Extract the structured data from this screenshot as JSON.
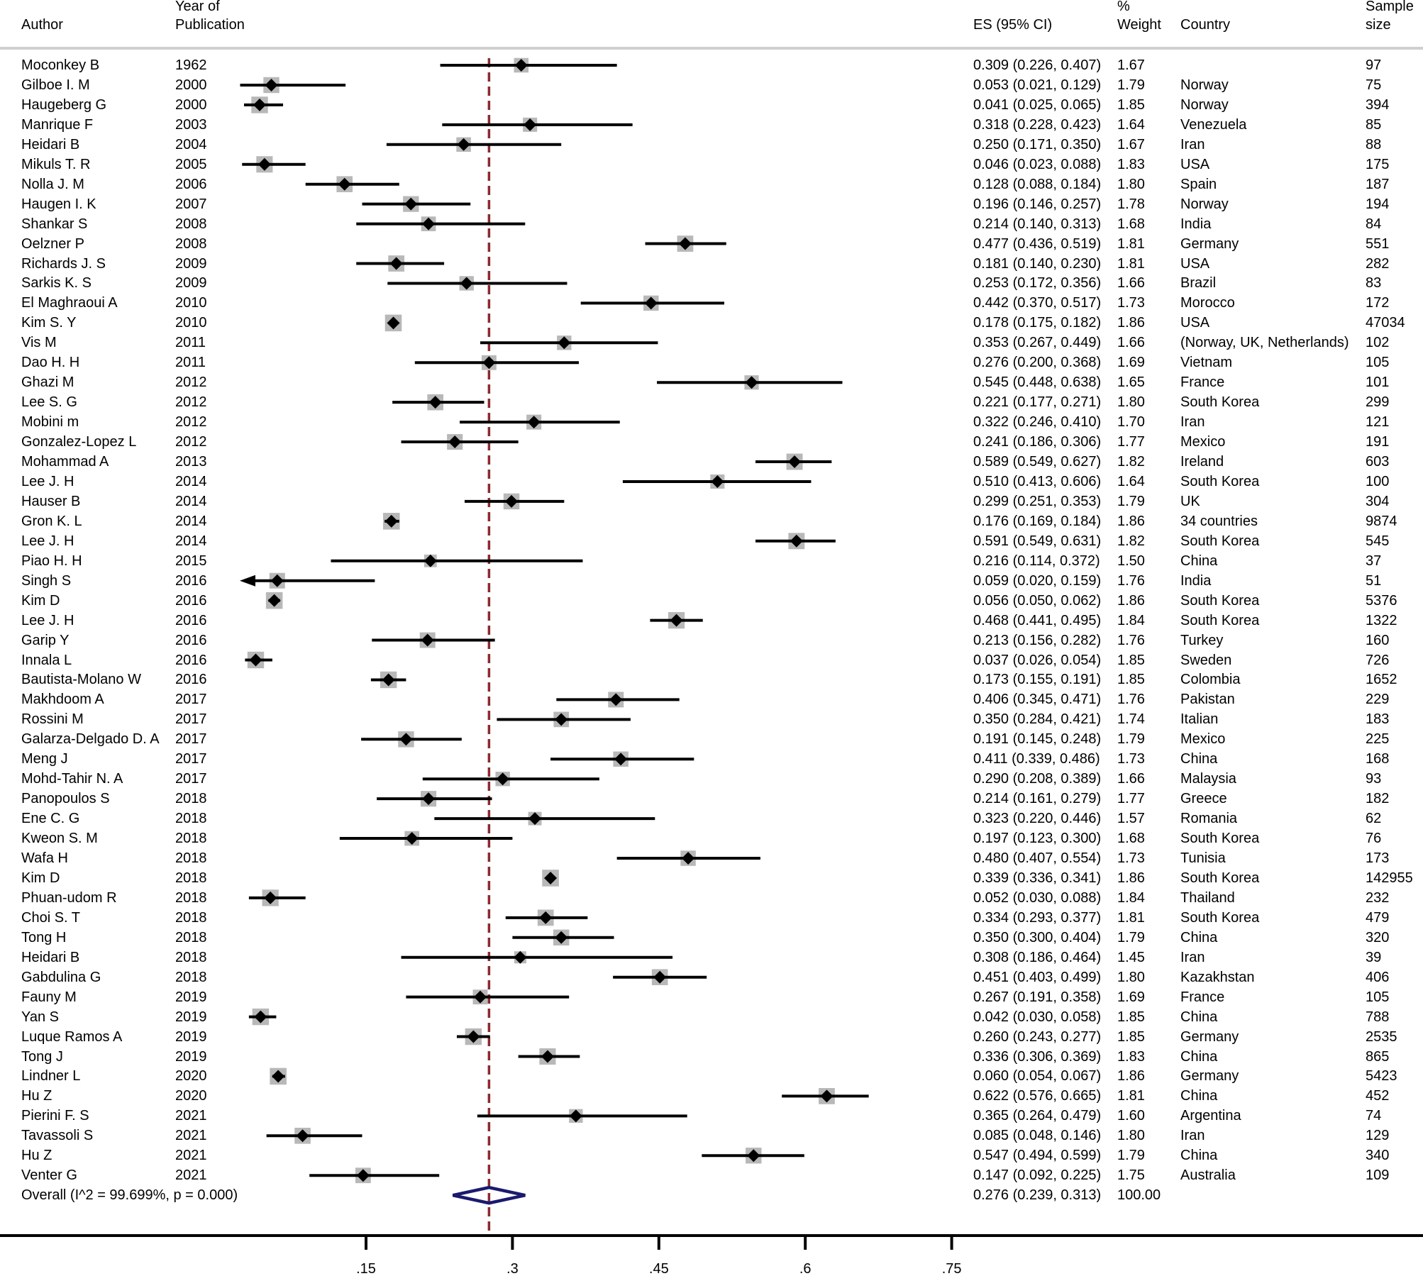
{
  "headers": {
    "author": "Author",
    "year": "Year of\nPublication",
    "es": "ES (95% CI)",
    "weight": "%\nWeight",
    "country": "Country",
    "sample": "Sample\nsize"
  },
  "colors": {
    "box": "#b8b8b8",
    "marker": "#000000",
    "ref_line": "#8b2a2f",
    "overall": "#1a1a6e",
    "separator": "#cfcfcf"
  },
  "chart_data": {
    "type": "forest",
    "xlabel": "",
    "x_ticks": [
      ".15",
      ".3",
      ".45",
      ".6",
      ".75"
    ],
    "x_tick_values": [
      0.15,
      0.3,
      0.45,
      0.6,
      0.75
    ],
    "reference_line": 0.276,
    "studies": [
      {
        "author": "Moconkey B",
        "year": "1962",
        "es": 0.309,
        "lo": 0.226,
        "hi": 0.407,
        "es_text": "0.309 (0.226, 0.407)",
        "weight": "1.67",
        "country": "",
        "sample": "97"
      },
      {
        "author": "Gilboe I. M",
        "year": "2000",
        "es": 0.053,
        "lo": 0.021,
        "hi": 0.129,
        "es_text": "0.053 (0.021, 0.129)",
        "weight": "1.79",
        "country": "Norway",
        "sample": "75"
      },
      {
        "author": "Haugeberg G",
        "year": "2000",
        "es": 0.041,
        "lo": 0.025,
        "hi": 0.065,
        "es_text": "0.041 (0.025, 0.065)",
        "weight": "1.85",
        "country": "Norway",
        "sample": "394"
      },
      {
        "author": "Manrique F",
        "year": "2003",
        "es": 0.318,
        "lo": 0.228,
        "hi": 0.423,
        "es_text": "0.318 (0.228, 0.423)",
        "weight": "1.64",
        "country": "Venezuela",
        "sample": "85"
      },
      {
        "author": "Heidari B",
        "year": "2004",
        "es": 0.25,
        "lo": 0.171,
        "hi": 0.35,
        "es_text": "0.250 (0.171, 0.350)",
        "weight": "1.67",
        "country": "Iran",
        "sample": "88"
      },
      {
        "author": "Mikuls T. R",
        "year": "2005",
        "es": 0.046,
        "lo": 0.023,
        "hi": 0.088,
        "es_text": "0.046 (0.023, 0.088)",
        "weight": "1.83",
        "country": "USA",
        "sample": "175"
      },
      {
        "author": "Nolla J. M",
        "year": "2006",
        "es": 0.128,
        "lo": 0.088,
        "hi": 0.184,
        "es_text": "0.128 (0.088, 0.184)",
        "weight": "1.80",
        "country": "Spain",
        "sample": "187"
      },
      {
        "author": "Haugen I. K",
        "year": "2007",
        "es": 0.196,
        "lo": 0.146,
        "hi": 0.257,
        "es_text": "0.196 (0.146, 0.257)",
        "weight": "1.78",
        "country": "Norway",
        "sample": "194"
      },
      {
        "author": "Shankar S",
        "year": "2008",
        "es": 0.214,
        "lo": 0.14,
        "hi": 0.313,
        "es_text": "0.214 (0.140, 0.313)",
        "weight": "1.68",
        "country": "India",
        "sample": "84"
      },
      {
        "author": "Oelzner P",
        "year": "2008",
        "es": 0.477,
        "lo": 0.436,
        "hi": 0.519,
        "es_text": "0.477 (0.436, 0.519)",
        "weight": "1.81",
        "country": "Germany",
        "sample": "551"
      },
      {
        "author": "Richards J. S",
        "year": "2009",
        "es": 0.181,
        "lo": 0.14,
        "hi": 0.23,
        "es_text": "0.181 (0.140, 0.230)",
        "weight": "1.81",
        "country": "USA",
        "sample": "282"
      },
      {
        "author": "Sarkis K. S",
        "year": "2009",
        "es": 0.253,
        "lo": 0.172,
        "hi": 0.356,
        "es_text": "0.253 (0.172, 0.356)",
        "weight": "1.66",
        "country": "Brazil",
        "sample": "83"
      },
      {
        "author": "El Maghraoui A",
        "year": "2010",
        "es": 0.442,
        "lo": 0.37,
        "hi": 0.517,
        "es_text": "0.442 (0.370, 0.517)",
        "weight": "1.73",
        "country": "Morocco",
        "sample": "172"
      },
      {
        "author": "Kim S. Y",
        "year": "2010",
        "es": 0.178,
        "lo": 0.175,
        "hi": 0.182,
        "es_text": "0.178 (0.175, 0.182)",
        "weight": "1.86",
        "country": "USA",
        "sample": "47034"
      },
      {
        "author": "Vis M",
        "year": "2011",
        "es": 0.353,
        "lo": 0.267,
        "hi": 0.449,
        "es_text": "0.353 (0.267, 0.449)",
        "weight": "1.66",
        "country": "(Norway, UK, Netherlands)",
        "sample": "102"
      },
      {
        "author": "Dao H. H",
        "year": "2011",
        "es": 0.276,
        "lo": 0.2,
        "hi": 0.368,
        "es_text": "0.276 (0.200, 0.368)",
        "weight": "1.69",
        "country": "Vietnam",
        "sample": "105"
      },
      {
        "author": "Ghazi M",
        "year": "2012",
        "es": 0.545,
        "lo": 0.448,
        "hi": 0.638,
        "es_text": "0.545 (0.448, 0.638)",
        "weight": "1.65",
        "country": "France",
        "sample": "101"
      },
      {
        "author": "Lee S. G",
        "year": "2012",
        "es": 0.221,
        "lo": 0.177,
        "hi": 0.271,
        "es_text": "0.221 (0.177, 0.271)",
        "weight": "1.80",
        "country": "South Korea",
        "sample": "299"
      },
      {
        "author": "Mobini m",
        "year": "2012",
        "es": 0.322,
        "lo": 0.246,
        "hi": 0.41,
        "es_text": "0.322 (0.246, 0.410)",
        "weight": "1.70",
        "country": "Iran",
        "sample": "121"
      },
      {
        "author": "Gonzalez-Lopez L",
        "year": "2012",
        "es": 0.241,
        "lo": 0.186,
        "hi": 0.306,
        "es_text": "0.241 (0.186, 0.306)",
        "weight": "1.77",
        "country": "Mexico",
        "sample": "191"
      },
      {
        "author": "Mohammad A",
        "year": "2013",
        "es": 0.589,
        "lo": 0.549,
        "hi": 0.627,
        "es_text": "0.589 (0.549, 0.627)",
        "weight": "1.82",
        "country": "Ireland",
        "sample": "603"
      },
      {
        "author": "Lee J. H",
        "year": "2014",
        "es": 0.51,
        "lo": 0.413,
        "hi": 0.606,
        "es_text": "0.510 (0.413, 0.606)",
        "weight": "1.64",
        "country": "South Korea",
        "sample": "100"
      },
      {
        "author": "Hauser B",
        "year": "2014",
        "es": 0.299,
        "lo": 0.251,
        "hi": 0.353,
        "es_text": "0.299 (0.251, 0.353)",
        "weight": "1.79",
        "country": "UK",
        "sample": "304"
      },
      {
        "author": "Gron K. L",
        "year": "2014",
        "es": 0.176,
        "lo": 0.169,
        "hi": 0.184,
        "es_text": "0.176 (0.169, 0.184)",
        "weight": "1.86",
        "country": "34 countries",
        "sample": "9874"
      },
      {
        "author": "Lee J. H",
        "year": "2014",
        "es": 0.591,
        "lo": 0.549,
        "hi": 0.631,
        "es_text": "0.591 (0.549, 0.631)",
        "weight": "1.82",
        "country": "South Korea",
        "sample": "545"
      },
      {
        "author": "Piao H. H",
        "year": "2015",
        "es": 0.216,
        "lo": 0.114,
        "hi": 0.372,
        "es_text": "0.216 (0.114, 0.372)",
        "weight": "1.50",
        "country": "China",
        "sample": "37"
      },
      {
        "author": "Singh S",
        "year": "2016",
        "es": 0.059,
        "lo": 0.02,
        "hi": 0.159,
        "es_text": "0.059 (0.020, 0.159)",
        "weight": "1.76",
        "country": "India",
        "sample": "51"
      },
      {
        "author": "Kim D",
        "year": "2016",
        "es": 0.056,
        "lo": 0.05,
        "hi": 0.062,
        "es_text": "0.056 (0.050, 0.062)",
        "weight": "1.86",
        "country": "South Korea",
        "sample": "5376"
      },
      {
        "author": "Lee J. H",
        "year": "2016",
        "es": 0.468,
        "lo": 0.441,
        "hi": 0.495,
        "es_text": "0.468 (0.441, 0.495)",
        "weight": "1.84",
        "country": "South Korea",
        "sample": "1322"
      },
      {
        "author": "Garip Y",
        "year": "2016",
        "es": 0.213,
        "lo": 0.156,
        "hi": 0.282,
        "es_text": "0.213 (0.156, 0.282)",
        "weight": "1.76",
        "country": "Turkey",
        "sample": "160"
      },
      {
        "author": "Innala L",
        "year": "2016",
        "es": 0.037,
        "lo": 0.026,
        "hi": 0.054,
        "es_text": "0.037 (0.026, 0.054)",
        "weight": "1.85",
        "country": "Sweden",
        "sample": "726"
      },
      {
        "author": "Bautista-Molano W",
        "year": "2016",
        "es": 0.173,
        "lo": 0.155,
        "hi": 0.191,
        "es_text": "0.173 (0.155, 0.191)",
        "weight": "1.85",
        "country": "Colombia",
        "sample": "1652"
      },
      {
        "author": "Makhdoom A",
        "year": "2017",
        "es": 0.406,
        "lo": 0.345,
        "hi": 0.471,
        "es_text": "0.406 (0.345, 0.471)",
        "weight": "1.76",
        "country": "Pakistan",
        "sample": "229"
      },
      {
        "author": "Rossini M",
        "year": "2017",
        "es": 0.35,
        "lo": 0.284,
        "hi": 0.421,
        "es_text": "0.350 (0.284, 0.421)",
        "weight": "1.74",
        "country": "Italian",
        "sample": "183"
      },
      {
        "author": "Galarza-Delgado D. A",
        "year": "2017",
        "es": 0.191,
        "lo": 0.145,
        "hi": 0.248,
        "es_text": "0.191 (0.145, 0.248)",
        "weight": "1.79",
        "country": "Mexico",
        "sample": "225"
      },
      {
        "author": "Meng J",
        "year": "2017",
        "es": 0.411,
        "lo": 0.339,
        "hi": 0.486,
        "es_text": "0.411 (0.339, 0.486)",
        "weight": "1.73",
        "country": "China",
        "sample": "168"
      },
      {
        "author": "Mohd-Tahir N. A",
        "year": "2017",
        "es": 0.29,
        "lo": 0.208,
        "hi": 0.389,
        "es_text": "0.290 (0.208, 0.389)",
        "weight": "1.66",
        "country": "Malaysia",
        "sample": "93"
      },
      {
        "author": "Panopoulos S",
        "year": "2018",
        "es": 0.214,
        "lo": 0.161,
        "hi": 0.279,
        "es_text": "0.214 (0.161, 0.279)",
        "weight": "1.77",
        "country": "Greece",
        "sample": "182"
      },
      {
        "author": "Ene C. G",
        "year": "2018",
        "es": 0.323,
        "lo": 0.22,
        "hi": 0.446,
        "es_text": "0.323 (0.220, 0.446)",
        "weight": "1.57",
        "country": "Romania",
        "sample": "62"
      },
      {
        "author": "Kweon S. M",
        "year": "2018",
        "es": 0.197,
        "lo": 0.123,
        "hi": 0.3,
        "es_text": "0.197 (0.123, 0.300)",
        "weight": "1.68",
        "country": "South Korea",
        "sample": "76"
      },
      {
        "author": "Wafa H",
        "year": "2018",
        "es": 0.48,
        "lo": 0.407,
        "hi": 0.554,
        "es_text": "0.480 (0.407, 0.554)",
        "weight": "1.73",
        "country": "Tunisia",
        "sample": "173"
      },
      {
        "author": "Kim D",
        "year": "2018",
        "es": 0.339,
        "lo": 0.336,
        "hi": 0.341,
        "es_text": "0.339 (0.336, 0.341)",
        "weight": "1.86",
        "country": "South Korea",
        "sample": "142955"
      },
      {
        "author": "Phuan-udom R",
        "year": "2018",
        "es": 0.052,
        "lo": 0.03,
        "hi": 0.088,
        "es_text": "0.052 (0.030, 0.088)",
        "weight": "1.84",
        "country": "Thailand",
        "sample": "232"
      },
      {
        "author": "Choi S. T",
        "year": "2018",
        "es": 0.334,
        "lo": 0.293,
        "hi": 0.377,
        "es_text": "0.334 (0.293, 0.377)",
        "weight": "1.81",
        "country": "South Korea",
        "sample": "479"
      },
      {
        "author": "Tong H",
        "year": "2018",
        "es": 0.35,
        "lo": 0.3,
        "hi": 0.404,
        "es_text": "0.350 (0.300, 0.404)",
        "weight": "1.79",
        "country": "China",
        "sample": "320"
      },
      {
        "author": "Heidari B",
        "year": "2018",
        "es": 0.308,
        "lo": 0.186,
        "hi": 0.464,
        "es_text": "0.308 (0.186, 0.464)",
        "weight": "1.45",
        "country": "Iran",
        "sample": "39"
      },
      {
        "author": "Gabdulina G",
        "year": "2018",
        "es": 0.451,
        "lo": 0.403,
        "hi": 0.499,
        "es_text": "0.451 (0.403, 0.499)",
        "weight": "1.80",
        "country": "Kazakhstan",
        "sample": "406"
      },
      {
        "author": "Fauny M",
        "year": "2019",
        "es": 0.267,
        "lo": 0.191,
        "hi": 0.358,
        "es_text": "0.267 (0.191, 0.358)",
        "weight": "1.69",
        "country": "France",
        "sample": "105"
      },
      {
        "author": "Yan S",
        "year": "2019",
        "es": 0.042,
        "lo": 0.03,
        "hi": 0.058,
        "es_text": "0.042 (0.030, 0.058)",
        "weight": "1.85",
        "country": "China",
        "sample": "788"
      },
      {
        "author": "Luque Ramos A",
        "year": "2019",
        "es": 0.26,
        "lo": 0.243,
        "hi": 0.277,
        "es_text": "0.260 (0.243, 0.277)",
        "weight": "1.85",
        "country": "Germany",
        "sample": "2535"
      },
      {
        "author": "Tong J",
        "year": "2019",
        "es": 0.336,
        "lo": 0.306,
        "hi": 0.369,
        "es_text": "0.336 (0.306, 0.369)",
        "weight": "1.83",
        "country": "China",
        "sample": "865"
      },
      {
        "author": "Lindner L",
        "year": "2020",
        "es": 0.06,
        "lo": 0.054,
        "hi": 0.067,
        "es_text": "0.060 (0.054, 0.067)",
        "weight": "1.86",
        "country": "Germany",
        "sample": "5423"
      },
      {
        "author": "Hu Z",
        "year": "2020",
        "es": 0.622,
        "lo": 0.576,
        "hi": 0.665,
        "es_text": "0.622 (0.576, 0.665)",
        "weight": "1.81",
        "country": "China",
        "sample": "452"
      },
      {
        "author": "Pierini F. S",
        "year": "2021",
        "es": 0.365,
        "lo": 0.264,
        "hi": 0.479,
        "es_text": "0.365 (0.264, 0.479)",
        "weight": "1.60",
        "country": "Argentina",
        "sample": "74"
      },
      {
        "author": "Tavassoli S",
        "year": "2021",
        "es": 0.085,
        "lo": 0.048,
        "hi": 0.146,
        "es_text": "0.085 (0.048, 0.146)",
        "weight": "1.80",
        "country": "Iran",
        "sample": "129"
      },
      {
        "author": "Hu Z",
        "year": "2021",
        "es": 0.547,
        "lo": 0.494,
        "hi": 0.599,
        "es_text": "0.547 (0.494, 0.599)",
        "weight": "1.79",
        "country": "China",
        "sample": "340"
      },
      {
        "author": "Venter G",
        "year": "2021",
        "es": 0.147,
        "lo": 0.092,
        "hi": 0.225,
        "es_text": "0.147 (0.092, 0.225)",
        "weight": "1.75",
        "country": "Australia",
        "sample": "109"
      }
    ],
    "overall": {
      "label": "Overall  (I^2 = 99.699%, p = 0.000)",
      "es": 0.276,
      "lo": 0.239,
      "hi": 0.313,
      "es_text": "0.276 (0.239, 0.313)",
      "weight": "100.00"
    }
  }
}
